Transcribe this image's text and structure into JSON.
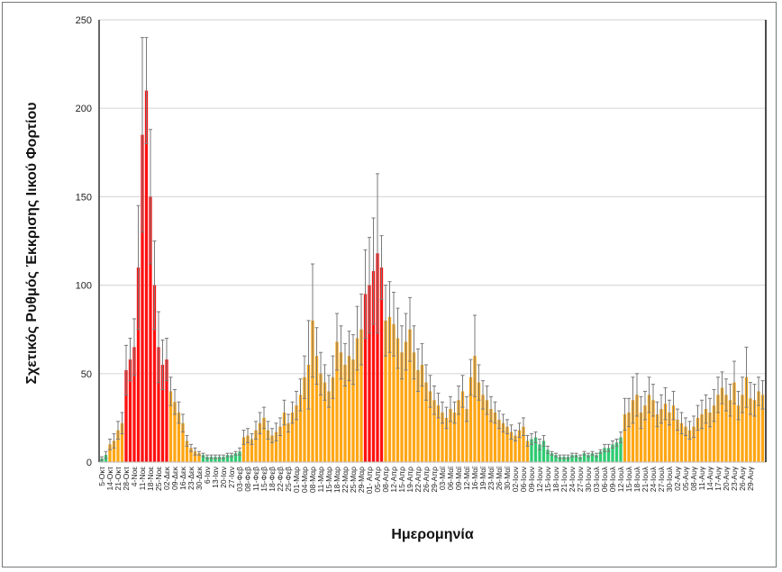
{
  "chart_data": {
    "type": "bar",
    "title": "",
    "xlabel": "Ημερομηνία",
    "ylabel": "Σχετικός Ρυθμός Έκκρισης Ιικού Φορτίου",
    "ylim": [
      0,
      250
    ],
    "yticks": [
      "0",
      "50",
      "100",
      "150",
      "200",
      "250"
    ],
    "grid": true,
    "bars_per_tick_label": 2,
    "tick_labels": [
      "5-Οκτ",
      "14-Οκτ",
      "21-Οκτ",
      "28-Οκτ",
      "4-Νοε",
      "11-Νοε",
      "18-Νοε",
      "25-Νοε",
      "02-Δεκ",
      "09-Δεκ",
      "16-Δεκ",
      "23-Δεκ",
      "30-Δεκ",
      "6-Ιαν",
      "13-Ιαν",
      "20-Ιαν",
      "27-Ιαν",
      "03-Φεβ",
      "08-Φεβ",
      "11-Φεβ",
      "15-Φεβ",
      "18-Φεβ",
      "22-Φεβ",
      "25-Φεβ",
      "01-Μαρ",
      "04-Μαρ",
      "08-Μαρ",
      "11-Μαρ",
      "15-Μαρ",
      "18-Μαρ",
      "22-Μαρ",
      "25-Μαρ",
      "29-Μαρ",
      "01- Απρ",
      "05-Απρ",
      "08-Απρ",
      "12-Απρ",
      "15-Απρ",
      "19-Απρ",
      "22-Απρ",
      "26-Απρ",
      "29-Απρ",
      "03-Μαϊ",
      "06-Μαϊ",
      "09-Μαϊ",
      "12-Μαϊ",
      "16-Μαϊ",
      "19-Μαϊ",
      "23-Μαϊ",
      "26-Μαϊ",
      "30-Μαϊ",
      "02-Ιουν",
      "06-Ιουν",
      "09-Ιουν",
      "12-Ιουν",
      "15-Ιουν",
      "18-Ιουν",
      "21-Ιουν",
      "24-Ιουν",
      "27-Ιουν",
      "30-Ιουν",
      "03-Ιουλ",
      "06-Ιουλ",
      "09-Ιουλ",
      "12-Ιουλ",
      "15-Ιουλ",
      "18-Ιουλ",
      "21-Ιουλ",
      "24-Ιουλ",
      "27-Ιουλ",
      "30-Ιουλ",
      "02-Αυγ",
      "05-Αυγ",
      "08-Αυγ",
      "11-Αυγ",
      "14-Αυγ",
      "17-Αυγ",
      "20-Αυγ",
      "23-Αυγ",
      "26-Αυγ",
      "29-Αυγ"
    ],
    "values": [
      2,
      4,
      10,
      12,
      18,
      22,
      52,
      58,
      65,
      110,
      185,
      210,
      150,
      100,
      65,
      55,
      58,
      40,
      34,
      28,
      22,
      12,
      8,
      6,
      5,
      4,
      3,
      3,
      3,
      3,
      3,
      4,
      4,
      5,
      6,
      14,
      15,
      13,
      18,
      22,
      25,
      18,
      15,
      17,
      20,
      28,
      22,
      28,
      32,
      38,
      48,
      55,
      80,
      60,
      50,
      45,
      40,
      48,
      68,
      62,
      55,
      60,
      58,
      70,
      75,
      95,
      100,
      108,
      118,
      110,
      80,
      82,
      78,
      70,
      62,
      68,
      75,
      62,
      52,
      55,
      45,
      40,
      35,
      32,
      28,
      25,
      30,
      28,
      35,
      40,
      30,
      48,
      60,
      45,
      38,
      35,
      30,
      28,
      24,
      22,
      20,
      17,
      15,
      18,
      20,
      12,
      13,
      14,
      10,
      12,
      7,
      5,
      4,
      3,
      3,
      3,
      4,
      4,
      3,
      5,
      4,
      5,
      4,
      6,
      8,
      8,
      10,
      11,
      14,
      27,
      28,
      35,
      38,
      28,
      32,
      38,
      35,
      27,
      30,
      33,
      28,
      32,
      24,
      22,
      20,
      18,
      20,
      25,
      27,
      30,
      28,
      32,
      38,
      42,
      38,
      35,
      45,
      32,
      38,
      48,
      36,
      35,
      40,
      38
    ],
    "errors": [
      1,
      2,
      3,
      4,
      5,
      6,
      14,
      12,
      16,
      35,
      55,
      30,
      38,
      25,
      20,
      14,
      12,
      8,
      7,
      6,
      5,
      3,
      2,
      2,
      1,
      1,
      1,
      1,
      1,
      1,
      1,
      1,
      1,
      1,
      2,
      4,
      4,
      3,
      5,
      6,
      6,
      5,
      4,
      5,
      5,
      7,
      5,
      6,
      8,
      9,
      12,
      25,
      32,
      16,
      12,
      10,
      9,
      12,
      16,
      15,
      12,
      14,
      14,
      18,
      20,
      25,
      27,
      30,
      45,
      18,
      20,
      20,
      18,
      17,
      15,
      16,
      18,
      15,
      12,
      12,
      10,
      9,
      8,
      7,
      6,
      6,
      7,
      6,
      8,
      9,
      7,
      10,
      23,
      10,
      8,
      8,
      7,
      6,
      5,
      5,
      4,
      4,
      3,
      4,
      5,
      3,
      3,
      3,
      3,
      3,
      2,
      1,
      1,
      1,
      1,
      1,
      1,
      1,
      1,
      1,
      1,
      1,
      1,
      1,
      2,
      2,
      2,
      2,
      3,
      9,
      8,
      13,
      12,
      9,
      8,
      10,
      9,
      7,
      8,
      9,
      7,
      8,
      6,
      6,
      5,
      5,
      6,
      7,
      8,
      8,
      8,
      9,
      10,
      9,
      9,
      9,
      12,
      8,
      10,
      17,
      9,
      9,
      8,
      8
    ],
    "level_segments": [
      {
        "from": 0,
        "to": 1,
        "level": "green"
      },
      {
        "from": 2,
        "to": 5,
        "level": "orange"
      },
      {
        "from": 6,
        "to": 16,
        "level": "red"
      },
      {
        "from": 17,
        "to": 24,
        "level": "orange"
      },
      {
        "from": 25,
        "to": 34,
        "level": "green"
      },
      {
        "from": 35,
        "to": 64,
        "level": "orange"
      },
      {
        "from": 65,
        "to": 69,
        "level": "red"
      },
      {
        "from": 70,
        "to": 105,
        "level": "orange"
      },
      {
        "from": 106,
        "to": 128,
        "level": "green"
      },
      {
        "from": 129,
        "to": 163,
        "level": "orange"
      }
    ],
    "colors": {
      "green": "#2FCB72",
      "orange": "#FFA614",
      "red": "#FF1010",
      "error": "#7A7A7A",
      "grid": "#DADADA",
      "axis": "#333333"
    }
  }
}
